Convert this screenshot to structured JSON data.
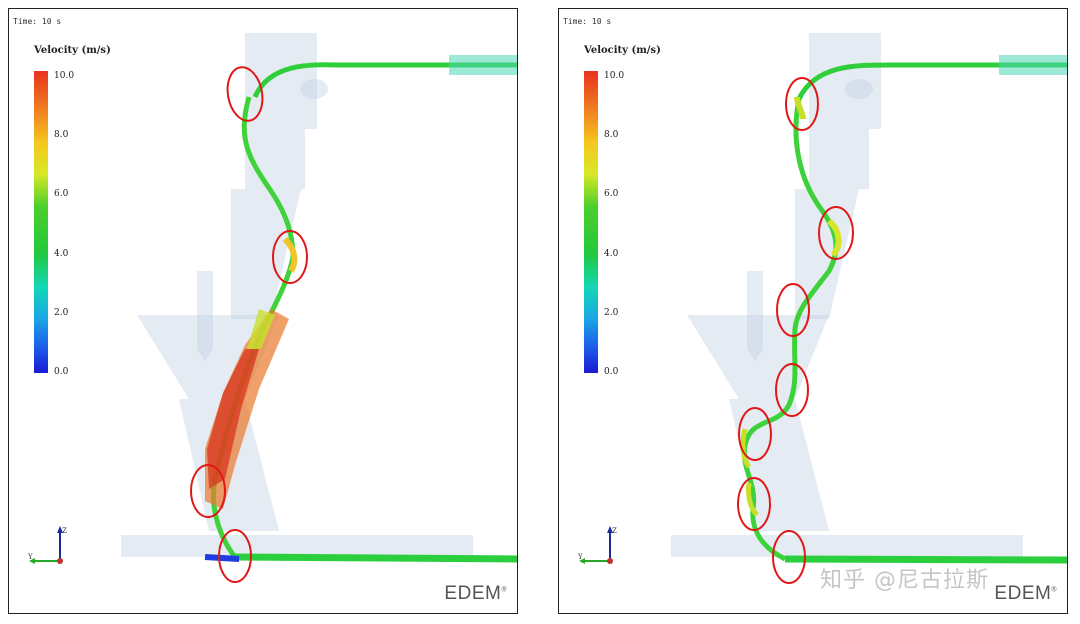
{
  "panels": [
    {
      "id": "left",
      "time_label": "Time: 10 s",
      "legend_title": "Velocity (m/s)",
      "legend_ticks": [
        "10.0",
        "8.0",
        "6.0",
        "4.0",
        "2.0",
        "0.0"
      ],
      "logo_text": "EDEM"
    },
    {
      "id": "right",
      "time_label": "Time: 10 s",
      "legend_title": "Velocity (m/s)",
      "legend_ticks": [
        "10.0",
        "8.0",
        "6.0",
        "4.0",
        "2.0",
        "0.0"
      ],
      "logo_text": "EDEM"
    }
  ],
  "axis_labels": {
    "z": "Z",
    "y": "Y"
  },
  "watermark": "知乎 @尼古拉斯",
  "colors": {
    "highlight_circle": "#e01818",
    "geometry": "#b8c8dc"
  }
}
